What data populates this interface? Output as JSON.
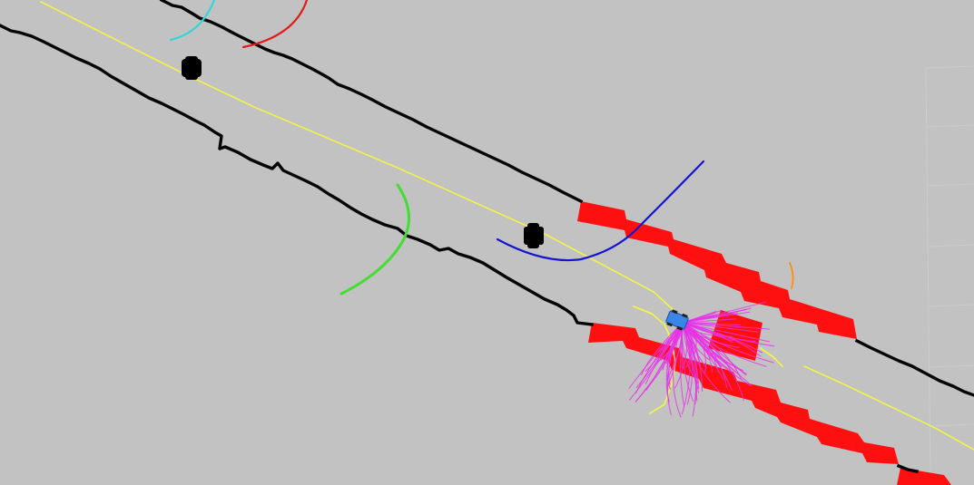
{
  "view": {
    "background": "#c2c2c2",
    "grid_color": "#cbcbcb"
  },
  "colors": {
    "map_wall": "#050505",
    "global_path": "#f2f24a",
    "inflated_obstacle": "#ff1010",
    "obstacle_dot": "#000000",
    "candidate_paths": "#e633e6",
    "robot": "#3a86e8",
    "traj_red": "#e41a1a",
    "traj_cyan": "#33d6d6",
    "traj_blue": "#1414d2",
    "traj_green": "#44dd33",
    "traj_orange": "#ff8c1a",
    "traj_yellow": "#f2f24a"
  },
  "scene": {
    "robot_icon": "robot-base-icon",
    "obstacle_icon": "dynamic-obstacle-icon"
  }
}
